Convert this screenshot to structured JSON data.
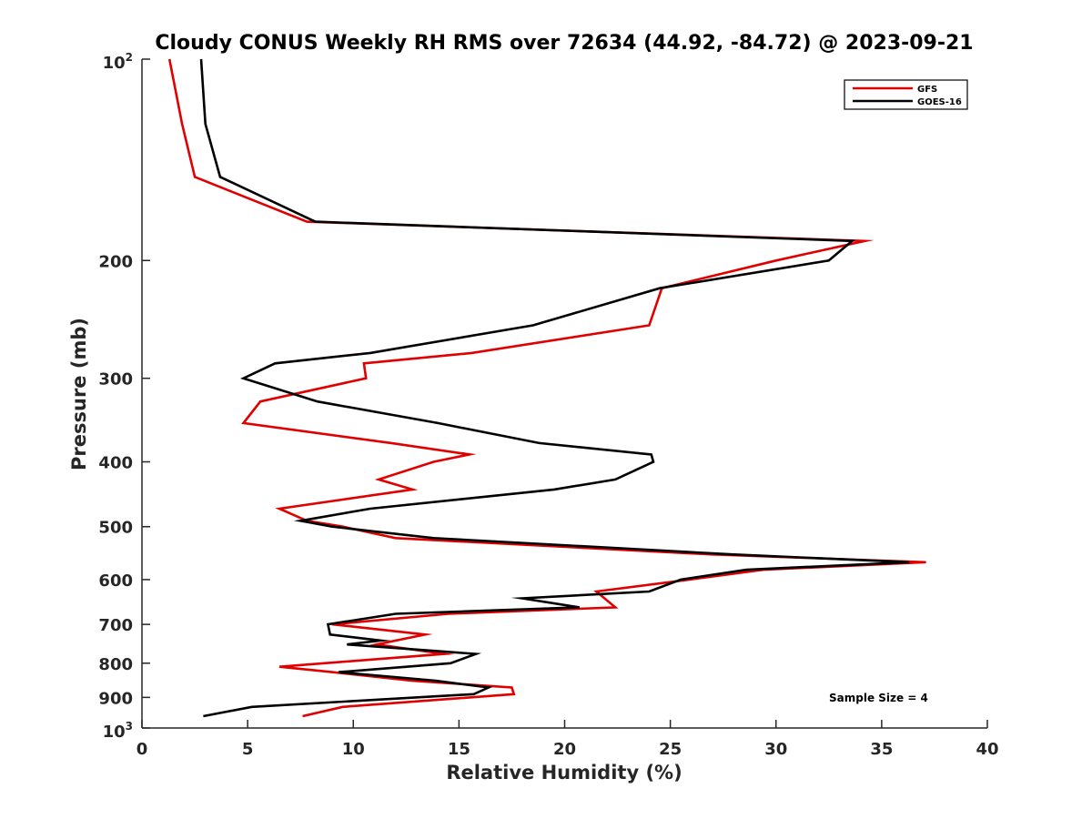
{
  "chart_data": {
    "type": "line",
    "title": "Cloudy CONUS Weekly RH RMS over 72634 (44.92, -84.72) @ 2023-09-21",
    "xlabel": "Relative Humidity (%)",
    "ylabel": "Pressure (mb)",
    "xlim": [
      0,
      40
    ],
    "ylim": [
      100,
      1000
    ],
    "y_scale": "log",
    "y_reversed": true,
    "x_ticks": [
      "0",
      "5",
      "10",
      "15",
      "20",
      "25",
      "30",
      "35",
      "40"
    ],
    "y_ticks": [
      {
        "value": 100,
        "base": "10",
        "exp": "2"
      },
      {
        "value": 200,
        "label": "200"
      },
      {
        "value": 300,
        "label": "300"
      },
      {
        "value": 400,
        "label": "400"
      },
      {
        "value": 500,
        "label": "500"
      },
      {
        "value": 600,
        "label": "600"
      },
      {
        "value": 700,
        "label": "700"
      },
      {
        "value": 800,
        "label": "800"
      },
      {
        "value": 900,
        "label": "900"
      },
      {
        "value": 1000,
        "base": "10",
        "exp": "3"
      }
    ],
    "grid": false,
    "legend_position": "top-right",
    "annotation": "Sample Size = 4",
    "series": [
      {
        "name": "GFS",
        "color": "#e00000",
        "points": [
          [
            1.3,
            100
          ],
          [
            1.9,
            125
          ],
          [
            2.5,
            150
          ],
          [
            7.8,
            175
          ],
          [
            34.2,
            187
          ],
          [
            30.0,
            200
          ],
          [
            24.6,
            220
          ],
          [
            24.0,
            250
          ],
          [
            15.6,
            275
          ],
          [
            10.5,
            285
          ],
          [
            10.6,
            300
          ],
          [
            5.6,
            325
          ],
          [
            4.8,
            350
          ],
          [
            11.8,
            375
          ],
          [
            15.5,
            390
          ],
          [
            13.8,
            400
          ],
          [
            11.2,
            425
          ],
          [
            12.8,
            440
          ],
          [
            6.5,
            470
          ],
          [
            7.8,
            490
          ],
          [
            9.5,
            500
          ],
          [
            12.0,
            520
          ],
          [
            26.9,
            550
          ],
          [
            37.1,
            565
          ],
          [
            29.4,
            580
          ],
          [
            25.9,
            600
          ],
          [
            21.5,
            625
          ],
          [
            22.4,
            660
          ],
          [
            14.5,
            675
          ],
          [
            9.0,
            700
          ],
          [
            13.4,
            725
          ],
          [
            11.1,
            750
          ],
          [
            14.3,
            775
          ],
          [
            6.5,
            810
          ],
          [
            9.0,
            825
          ],
          [
            12.8,
            850
          ],
          [
            17.5,
            870
          ],
          [
            17.6,
            890
          ],
          [
            9.5,
            930
          ],
          [
            7.6,
            960
          ]
        ]
      },
      {
        "name": "GOES-16",
        "color": "#000000",
        "points": [
          [
            2.8,
            100
          ],
          [
            3.0,
            125
          ],
          [
            3.7,
            150
          ],
          [
            8.2,
            175
          ],
          [
            33.6,
            187
          ],
          [
            32.5,
            200
          ],
          [
            24.5,
            220
          ],
          [
            18.5,
            250
          ],
          [
            10.8,
            275
          ],
          [
            6.3,
            285
          ],
          [
            4.8,
            300
          ],
          [
            8.3,
            325
          ],
          [
            14.0,
            350
          ],
          [
            18.8,
            375
          ],
          [
            24.1,
            390
          ],
          [
            24.2,
            400
          ],
          [
            22.4,
            425
          ],
          [
            19.5,
            440
          ],
          [
            10.8,
            470
          ],
          [
            7.5,
            490
          ],
          [
            9.0,
            500
          ],
          [
            13.8,
            520
          ],
          [
            27.9,
            550
          ],
          [
            36.3,
            565
          ],
          [
            28.6,
            580
          ],
          [
            25.5,
            600
          ],
          [
            24.0,
            625
          ],
          [
            18.0,
            640
          ],
          [
            20.7,
            660
          ],
          [
            12.0,
            675
          ],
          [
            8.8,
            700
          ],
          [
            8.9,
            725
          ],
          [
            11.3,
            740
          ],
          [
            9.7,
            750
          ],
          [
            15.8,
            775
          ],
          [
            14.6,
            800
          ],
          [
            9.3,
            825
          ],
          [
            13.9,
            850
          ],
          [
            16.4,
            870
          ],
          [
            15.7,
            890
          ],
          [
            5.2,
            930
          ],
          [
            2.9,
            960
          ]
        ]
      }
    ]
  }
}
